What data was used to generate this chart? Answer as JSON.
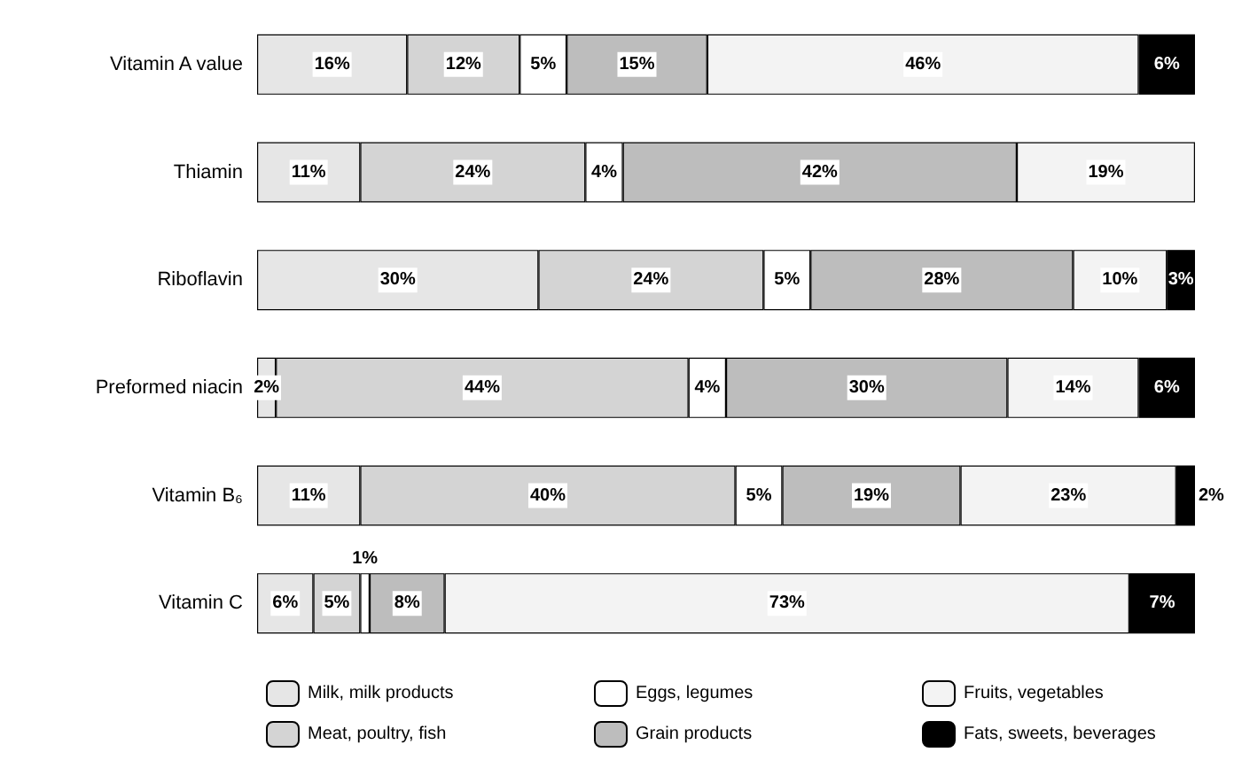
{
  "chart_data": {
    "type": "bar",
    "orientation": "horizontal",
    "stacked": true,
    "legend": "bottom",
    "categories": [
      "Vitamin A value",
      "Thiamin",
      "Riboflavin",
      "Preformed niacin",
      "Vitamin B₆",
      "Vitamin C"
    ],
    "series": [
      {
        "name": "Milk, milk products",
        "color": "#e6e6e6",
        "values": [
          16,
          11,
          30,
          2,
          11,
          6
        ],
        "value_labels": [
          "16%",
          "11%",
          "30%",
          "2%",
          "11%",
          "6%"
        ]
      },
      {
        "name": "Meat, poultry, fish",
        "color": "#d4d4d4",
        "values": [
          12,
          24,
          24,
          44,
          40,
          5
        ],
        "value_labels": [
          "12%",
          "24%",
          "24%",
          "44%",
          "40%",
          "5%"
        ]
      },
      {
        "name": "Eggs, legumes",
        "color": "#ffffff",
        "values": [
          5,
          4,
          5,
          4,
          5,
          1
        ],
        "value_labels": [
          "5%",
          "4%",
          "5%",
          "4%",
          "5%",
          "1%"
        ]
      },
      {
        "name": "Grain products",
        "color": "#bdbdbd",
        "values": [
          15,
          42,
          28,
          30,
          19,
          8
        ],
        "value_labels": [
          "15%",
          "42%",
          "28%",
          "30%",
          "19%",
          "8%"
        ]
      },
      {
        "name": "Fruits, vegetables",
        "color": "#f3f3f3",
        "values": [
          46,
          19,
          10,
          14,
          23,
          73
        ],
        "value_labels": [
          "46%",
          "19%",
          "10%",
          "14%",
          "23%",
          "73%"
        ]
      },
      {
        "name": "Fats, sweets, beverages",
        "color": "#000000",
        "values": [
          6,
          null,
          3,
          6,
          2,
          7
        ],
        "value_labels": [
          "6%",
          null,
          "3%",
          "6%",
          "2%",
          "7%"
        ]
      }
    ]
  }
}
